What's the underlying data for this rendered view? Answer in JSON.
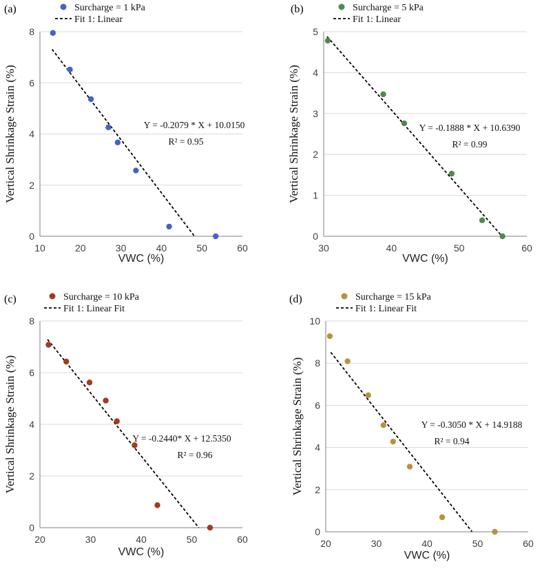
{
  "chart_data": [
    {
      "panel_label": "(a)",
      "type": "scatter",
      "legend": [
        "Surcharge = 1 kPa",
        "Fit 1: Linear"
      ],
      "color": "#4462c9",
      "xlabel": "VWC (%)",
      "ylabel": "Vertical Shrinkage Strain (%)",
      "xlim": [
        10,
        60
      ],
      "ylim": [
        0,
        8
      ],
      "xticks": [
        "10",
        "20",
        "30",
        "40",
        "50",
        "60"
      ],
      "yticks": [
        "0",
        "2",
        "4",
        "6",
        "8"
      ],
      "points": [
        {
          "x": 13.2,
          "y": 7.95
        },
        {
          "x": 17.4,
          "y": 6.52
        },
        {
          "x": 22.6,
          "y": 5.36
        },
        {
          "x": 26.9,
          "y": 4.26
        },
        {
          "x": 29.2,
          "y": 3.67
        },
        {
          "x": 33.7,
          "y": 2.57
        },
        {
          "x": 41.9,
          "y": 0.38
        },
        {
          "x": 53.4,
          "y": 0.0
        }
      ],
      "fit": {
        "slope": -0.2079,
        "intercept": 10.015,
        "x_range": [
          13.0,
          48.2
        ]
      },
      "equation": "Y = -0.2079 * X + 10.0150",
      "r2": "R² = 0.95"
    },
    {
      "panel_label": "(b)",
      "type": "scatter",
      "legend": [
        "Surcharge = 5 kPa",
        "Fit 1: Linear"
      ],
      "color": "#4e8a4e",
      "xlabel": "VWC (%)",
      "ylabel": "Vertical Shrinkage Strain (%)",
      "xlim": [
        30,
        60
      ],
      "ylim": [
        0,
        5
      ],
      "xticks": [
        "30",
        "40",
        "50",
        "60"
      ],
      "yticks": [
        "0",
        "1",
        "2",
        "3",
        "4",
        "5"
      ],
      "points": [
        {
          "x": 30.6,
          "y": 4.78
        },
        {
          "x": 38.8,
          "y": 3.47
        },
        {
          "x": 41.9,
          "y": 2.76
        },
        {
          "x": 48.9,
          "y": 1.53
        },
        {
          "x": 53.4,
          "y": 0.39
        },
        {
          "x": 56.4,
          "y": 0.0
        }
      ],
      "fit": {
        "slope": -0.1888,
        "intercept": 10.639,
        "x_range": [
          30.5,
          56.4
        ]
      },
      "equation": "Y = -0.1888 * X + 10.6390",
      "r2": "R² = 0.99"
    },
    {
      "panel_label": "(c)",
      "type": "scatter",
      "legend": [
        "Surcharge = 10 kPa",
        "Fit 1: Linear Fit"
      ],
      "color": "#a33a20",
      "xlabel": "VWC (%)",
      "ylabel": "Vertical Shrinkage Strain (%)",
      "xlim": [
        20,
        60
      ],
      "ylim": [
        0,
        8
      ],
      "xticks": [
        "20",
        "30",
        "40",
        "50",
        "60"
      ],
      "yticks": [
        "0",
        "2",
        "4",
        "6",
        "8"
      ],
      "points": [
        {
          "x": 21.7,
          "y": 7.08
        },
        {
          "x": 25.2,
          "y": 6.43
        },
        {
          "x": 29.8,
          "y": 5.62
        },
        {
          "x": 33.0,
          "y": 4.92
        },
        {
          "x": 35.2,
          "y": 4.12
        },
        {
          "x": 38.7,
          "y": 3.19
        },
        {
          "x": 43.2,
          "y": 0.87
        },
        {
          "x": 53.6,
          "y": 0.0
        }
      ],
      "fit": {
        "slope": -0.244,
        "intercept": 12.535,
        "x_range": [
          21.5,
          51.4
        ]
      },
      "equation": "Y = -0.2440* X + 12.5350",
      "r2": "R² = 0.96"
    },
    {
      "panel_label": "(d)",
      "type": "scatter",
      "legend": [
        "Surcharge = 15 kPa",
        "Fit 1: Linear Fit"
      ],
      "color": "#b8923c",
      "xlabel": "VWC (%)",
      "ylabel": "Vertical Shrinkage Strain (%)",
      "xlim": [
        20,
        60
      ],
      "ylim": [
        0,
        10
      ],
      "xticks": [
        "20",
        "30",
        "40",
        "50",
        "60"
      ],
      "yticks": [
        "0",
        "2",
        "4",
        "6",
        "8",
        "10"
      ],
      "points": [
        {
          "x": 20.8,
          "y": 9.28
        },
        {
          "x": 24.3,
          "y": 8.09
        },
        {
          "x": 28.4,
          "y": 6.48
        },
        {
          "x": 31.4,
          "y": 5.06
        },
        {
          "x": 33.3,
          "y": 4.28
        },
        {
          "x": 36.6,
          "y": 3.09
        },
        {
          "x": 43.0,
          "y": 0.69
        },
        {
          "x": 53.4,
          "y": 0.0
        }
      ],
      "fit": {
        "slope": -0.305,
        "intercept": 14.9188,
        "x_range": [
          21.0,
          48.9
        ]
      },
      "equation": "Y = -0.3050 * X + 14.9188",
      "r2": "R² = 0.94"
    }
  ]
}
